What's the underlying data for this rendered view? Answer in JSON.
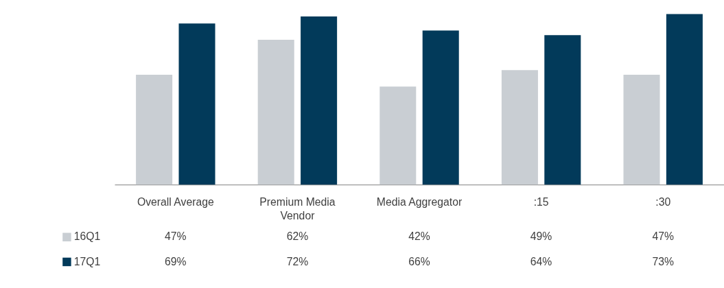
{
  "chart_data": {
    "type": "bar",
    "categories": [
      "Overall Average",
      "Premium Media Vendor",
      "Media Aggregator",
      ":15",
      ":30"
    ],
    "series": [
      {
        "name": "16Q1",
        "color": "#c9ced3",
        "values": [
          47,
          62,
          42,
          49,
          47
        ],
        "value_labels": [
          "47%",
          "62%",
          "42%",
          "49%",
          "47%"
        ]
      },
      {
        "name": "17Q1",
        "color": "#023a5a",
        "values": [
          69,
          72,
          66,
          64,
          73
        ],
        "value_labels": [
          "69%",
          "72%",
          "66%",
          "64%",
          "73%"
        ]
      }
    ],
    "legend": "bottom left",
    "grid": false
  }
}
